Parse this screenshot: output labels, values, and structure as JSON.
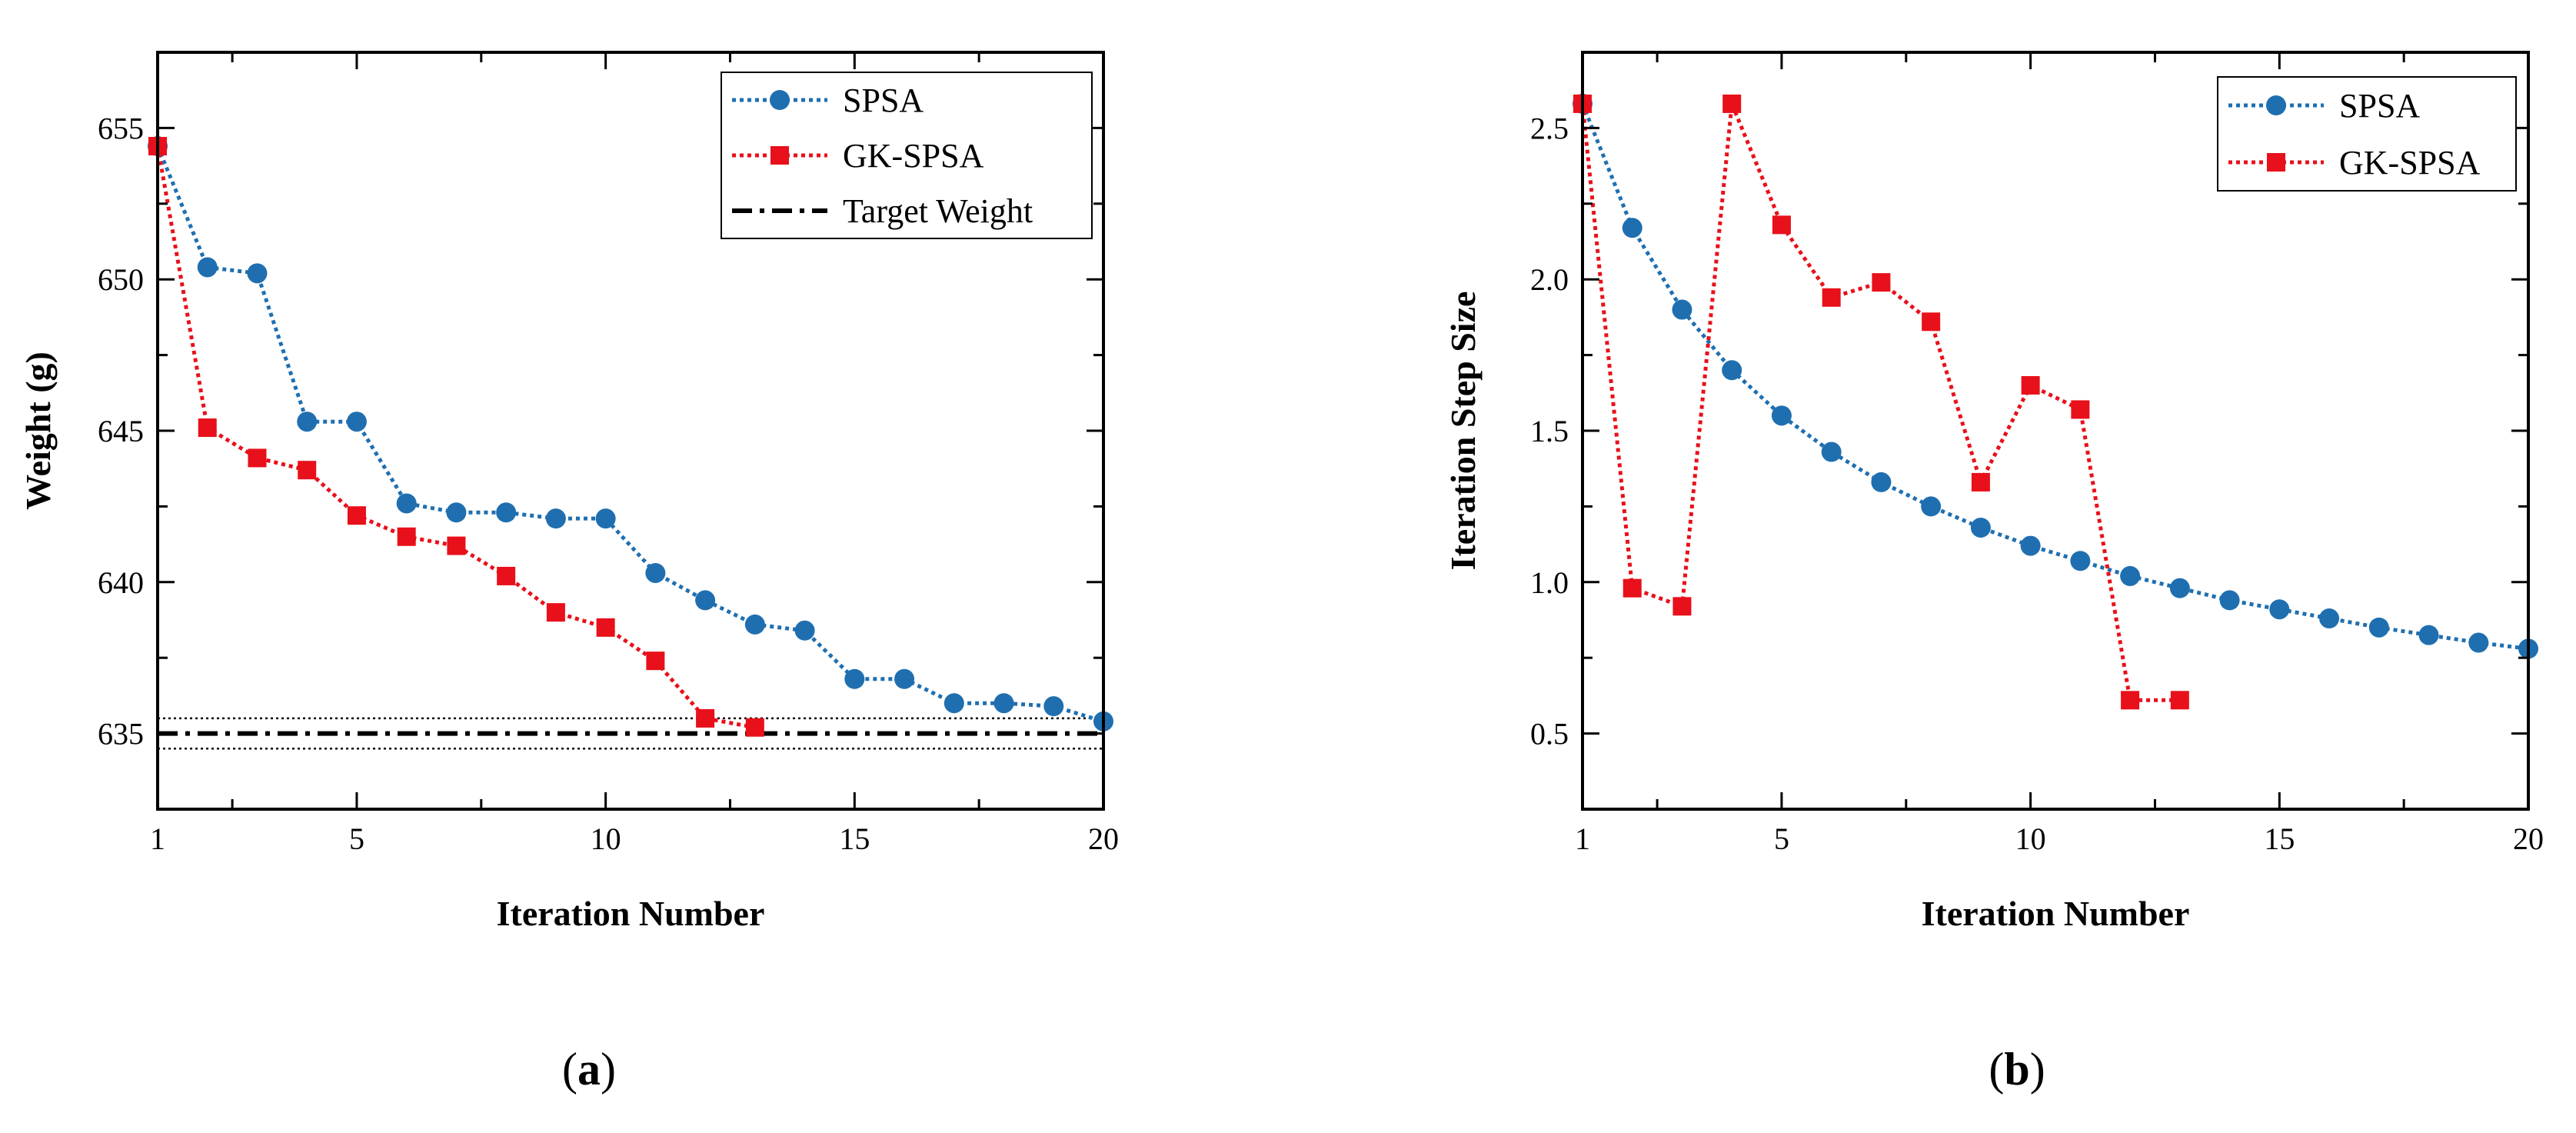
{
  "chart_data": [
    {
      "type": "line",
      "panel_label": "a",
      "xlabel": "Iteration Number",
      "ylabel": "Weight (g)",
      "xlim": [
        1,
        20
      ],
      "ylim": [
        632.5,
        657.5
      ],
      "xticks": [
        1,
        5,
        10,
        15,
        20
      ],
      "yticks": [
        635,
        640,
        645,
        650,
        655
      ],
      "legend_position": "top-right",
      "series": [
        {
          "name": "SPSA",
          "color": "#1f6fb0",
          "marker": "circle",
          "x": [
            1,
            2,
            3,
            4,
            5,
            6,
            7,
            8,
            9,
            10,
            11,
            12,
            13,
            14,
            15,
            16,
            17,
            18,
            19,
            20
          ],
          "y": [
            654.4,
            650.4,
            650.2,
            645.3,
            645.3,
            642.6,
            642.3,
            642.3,
            642.1,
            642.1,
            640.3,
            639.4,
            638.6,
            638.4,
            636.8,
            636.8,
            636.0,
            636.0,
            635.9,
            635.4
          ]
        },
        {
          "name": "GK-SPSA",
          "color": "#e8101a",
          "marker": "square",
          "x": [
            1,
            2,
            3,
            4,
            5,
            6,
            7,
            8,
            9,
            10,
            11,
            12,
            13
          ],
          "y": [
            654.4,
            645.1,
            644.1,
            643.7,
            642.2,
            641.5,
            641.2,
            640.2,
            639.0,
            638.5,
            637.4,
            635.5,
            635.2
          ]
        }
      ],
      "reference_lines": [
        {
          "name": "Target Weight",
          "y": 635,
          "style": "dash-dot"
        },
        {
          "name": "",
          "y": 635.5,
          "style": "dotted"
        },
        {
          "name": "",
          "y": 634.5,
          "style": "dotted"
        }
      ]
    },
    {
      "type": "line",
      "panel_label": "b",
      "xlabel": "Iteration Number",
      "ylabel": "Iteration Step Size",
      "xlim": [
        1,
        20
      ],
      "ylim": [
        0.25,
        2.75
      ],
      "xticks": [
        1,
        5,
        10,
        15,
        20
      ],
      "yticks": [
        0.5,
        1.0,
        1.5,
        2.0,
        2.5
      ],
      "legend_position": "top-right",
      "series": [
        {
          "name": "SPSA",
          "color": "#1f6fb0",
          "marker": "circle",
          "x": [
            1,
            2,
            3,
            4,
            5,
            6,
            7,
            8,
            9,
            10,
            11,
            12,
            13,
            14,
            15,
            16,
            17,
            18,
            19,
            20
          ],
          "y": [
            2.58,
            2.17,
            1.9,
            1.7,
            1.55,
            1.43,
            1.33,
            1.25,
            1.18,
            1.12,
            1.07,
            1.02,
            0.98,
            0.94,
            0.91,
            0.88,
            0.85,
            0.825,
            0.8,
            0.78
          ]
        },
        {
          "name": "GK-SPSA",
          "color": "#e8101a",
          "marker": "square",
          "x": [
            1,
            2,
            3,
            4,
            5,
            6,
            7,
            8,
            9,
            10,
            11,
            12,
            13
          ],
          "y": [
            2.58,
            0.98,
            0.92,
            2.58,
            2.18,
            1.94,
            1.99,
            1.86,
            1.33,
            1.65,
            1.57,
            0.61,
            0.61
          ]
        }
      ]
    }
  ]
}
